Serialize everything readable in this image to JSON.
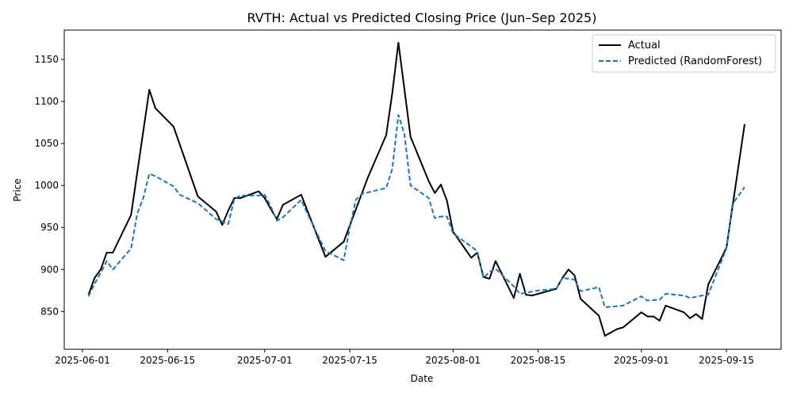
{
  "chart_data": {
    "type": "line",
    "title": "RVTH: Actual vs Predicted Closing Price (Jun–Sep 2025)",
    "xlabel": "Date",
    "ylabel": "Price",
    "xlim": [
      "2025-05-29",
      "2025-09-24"
    ],
    "ylim": [
      805,
      1185
    ],
    "x_ticks": [
      "2025-06-01",
      "2025-06-15",
      "2025-07-01",
      "2025-07-15",
      "2025-08-01",
      "2025-08-15",
      "2025-09-01",
      "2025-09-15"
    ],
    "y_ticks": [
      850,
      900,
      950,
      1000,
      1050,
      1100,
      1150
    ],
    "grid": false,
    "legend_position": "top-right",
    "series": [
      {
        "name": "Actual",
        "color": "#000000",
        "style": "solid",
        "points": [
          [
            "2025-06-02",
            870
          ],
          [
            "2025-06-03",
            890
          ],
          [
            "2025-06-04",
            900
          ],
          [
            "2025-06-05",
            920
          ],
          [
            "2025-06-06",
            920
          ],
          [
            "2025-06-09",
            965
          ],
          [
            "2025-06-12",
            1114
          ],
          [
            "2025-06-13",
            1092
          ],
          [
            "2025-06-16",
            1070
          ],
          [
            "2025-06-20",
            987
          ],
          [
            "2025-06-23",
            969
          ],
          [
            "2025-06-24",
            953
          ],
          [
            "2025-06-25",
            970
          ],
          [
            "2025-06-26",
            985
          ],
          [
            "2025-06-27",
            985
          ],
          [
            "2025-06-30",
            993
          ],
          [
            "2025-07-01",
            985
          ],
          [
            "2025-07-02",
            972
          ],
          [
            "2025-07-03",
            960
          ],
          [
            "2025-07-04",
            977
          ],
          [
            "2025-07-07",
            989
          ],
          [
            "2025-07-11",
            915
          ],
          [
            "2025-07-14",
            933
          ],
          [
            "2025-07-18",
            1010
          ],
          [
            "2025-07-21",
            1060
          ],
          [
            "2025-07-22",
            1110
          ],
          [
            "2025-07-23",
            1170
          ],
          [
            "2025-07-25",
            1058
          ],
          [
            "2025-07-28",
            1005
          ],
          [
            "2025-07-29",
            991
          ],
          [
            "2025-07-30",
            1001
          ],
          [
            "2025-07-31",
            982
          ],
          [
            "2025-08-01",
            945
          ],
          [
            "2025-08-04",
            914
          ],
          [
            "2025-08-05",
            920
          ],
          [
            "2025-08-06",
            891
          ],
          [
            "2025-08-07",
            889
          ],
          [
            "2025-08-08",
            910
          ],
          [
            "2025-08-11",
            866
          ],
          [
            "2025-08-12",
            895
          ],
          [
            "2025-08-13",
            870
          ],
          [
            "2025-08-14",
            869
          ],
          [
            "2025-08-18",
            877
          ],
          [
            "2025-08-19",
            890
          ],
          [
            "2025-08-20",
            900
          ],
          [
            "2025-08-21",
            893
          ],
          [
            "2025-08-22",
            865
          ],
          [
            "2025-08-25",
            845
          ],
          [
            "2025-08-26",
            821
          ],
          [
            "2025-08-28",
            829
          ],
          [
            "2025-08-29",
            831
          ],
          [
            "2025-09-01",
            849
          ],
          [
            "2025-09-02",
            844
          ],
          [
            "2025-09-03",
            844
          ],
          [
            "2025-09-04",
            839
          ],
          [
            "2025-09-05",
            857
          ],
          [
            "2025-09-08",
            849
          ],
          [
            "2025-09-09",
            842
          ],
          [
            "2025-09-10",
            847
          ],
          [
            "2025-09-11",
            841
          ],
          [
            "2025-09-12",
            882
          ],
          [
            "2025-09-15",
            926
          ],
          [
            "2025-09-18",
            1073
          ]
        ]
      },
      {
        "name": "Predicted (RandomForest)",
        "color": "#1f77b4",
        "style": "dashed",
        "points": [
          [
            "2025-06-02",
            868
          ],
          [
            "2025-06-03",
            883
          ],
          [
            "2025-06-04",
            896
          ],
          [
            "2025-06-05",
            910
          ],
          [
            "2025-06-06",
            900
          ],
          [
            "2025-06-09",
            925
          ],
          [
            "2025-06-10",
            966
          ],
          [
            "2025-06-11",
            985
          ],
          [
            "2025-06-12",
            1014
          ],
          [
            "2025-06-13",
            1011
          ],
          [
            "2025-06-16",
            999
          ],
          [
            "2025-06-17",
            989
          ],
          [
            "2025-06-20",
            979
          ],
          [
            "2025-06-23",
            960
          ],
          [
            "2025-06-25",
            954
          ],
          [
            "2025-06-26",
            984
          ],
          [
            "2025-06-27",
            988
          ],
          [
            "2025-06-30",
            988
          ],
          [
            "2025-07-01",
            989
          ],
          [
            "2025-07-02",
            975
          ],
          [
            "2025-07-03",
            958
          ],
          [
            "2025-07-04",
            962
          ],
          [
            "2025-07-07",
            983
          ],
          [
            "2025-07-08",
            967
          ],
          [
            "2025-07-11",
            922
          ],
          [
            "2025-07-14",
            911
          ],
          [
            "2025-07-15",
            950
          ],
          [
            "2025-07-16",
            983
          ],
          [
            "2025-07-17",
            990
          ],
          [
            "2025-07-21",
            997
          ],
          [
            "2025-07-22",
            1020
          ],
          [
            "2025-07-23",
            1084
          ],
          [
            "2025-07-24",
            1061
          ],
          [
            "2025-07-25",
            1000
          ],
          [
            "2025-07-28",
            985
          ],
          [
            "2025-07-29",
            961
          ],
          [
            "2025-07-30",
            963
          ],
          [
            "2025-07-31",
            963
          ],
          [
            "2025-08-01",
            943
          ],
          [
            "2025-08-05",
            922
          ],
          [
            "2025-08-06",
            890
          ],
          [
            "2025-08-07",
            897
          ],
          [
            "2025-08-08",
            901
          ],
          [
            "2025-08-11",
            880
          ],
          [
            "2025-08-12",
            871
          ],
          [
            "2025-08-15",
            875
          ],
          [
            "2025-08-18",
            877
          ],
          [
            "2025-08-19",
            890
          ],
          [
            "2025-08-21",
            888
          ],
          [
            "2025-08-22",
            874
          ],
          [
            "2025-08-25",
            879
          ],
          [
            "2025-08-26",
            855
          ],
          [
            "2025-08-29",
            857
          ],
          [
            "2025-09-01",
            868
          ],
          [
            "2025-09-02",
            863
          ],
          [
            "2025-09-04",
            864
          ],
          [
            "2025-09-05",
            871
          ],
          [
            "2025-09-08",
            869
          ],
          [
            "2025-09-09",
            866
          ],
          [
            "2025-09-11",
            869
          ],
          [
            "2025-09-12",
            870
          ],
          [
            "2025-09-15",
            925
          ],
          [
            "2025-09-16",
            978
          ],
          [
            "2025-09-18",
            998
          ]
        ]
      }
    ]
  }
}
